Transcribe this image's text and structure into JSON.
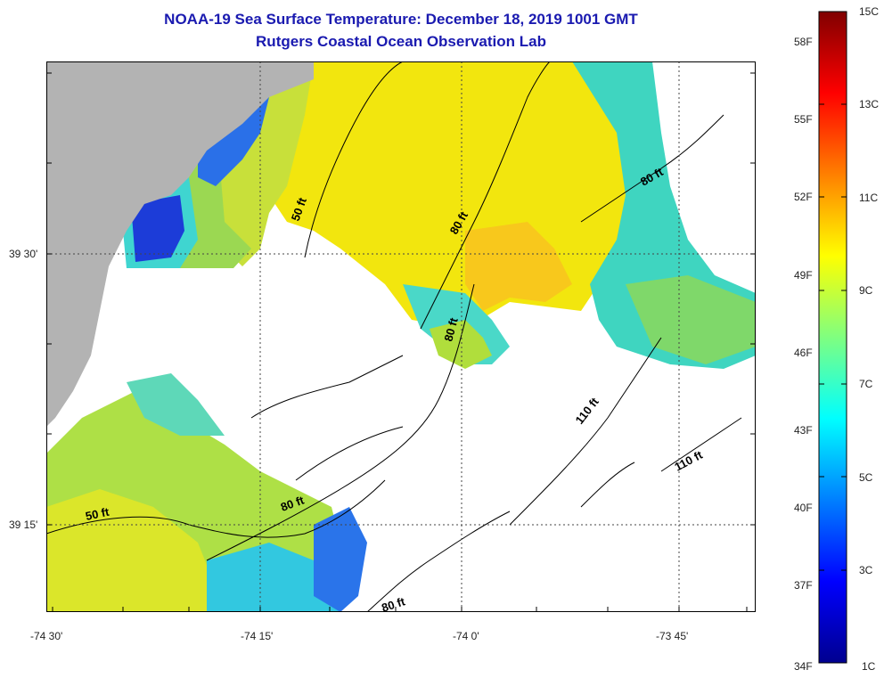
{
  "header": {
    "title": "NOAA-19 Sea Surface Temperature:  December 18, 2019 1001 GMT",
    "subtitle": "Rutgers Coastal Ocean Observation Lab"
  },
  "axes": {
    "longitude_labels": [
      "-74 30'",
      "-74 15'",
      "-74 0'",
      "-73 45'"
    ],
    "latitude_labels": [
      "39 30'",
      "39 15'"
    ]
  },
  "contours": {
    "labels": [
      "50 ft",
      "50 ft",
      "80 ft",
      "80 ft",
      "80 ft",
      "80 ft",
      "80 ft",
      "110 ft",
      "110 ft"
    ]
  },
  "colorbar": {
    "celsius_labels": [
      "15C",
      "13C",
      "11C",
      "9C",
      "7C",
      "5C",
      "3C",
      "1C"
    ],
    "fahrenheit_labels": [
      "58F",
      "55F",
      "52F",
      "49F",
      "46F",
      "43F",
      "40F",
      "37F",
      "34F"
    ],
    "range_c": [
      1,
      15
    ]
  },
  "colors": {
    "title": "#1a1ab0",
    "land": "#b3b3b3",
    "no_data": "#ffffff",
    "contour": "#000000",
    "gridline": "#444444"
  }
}
